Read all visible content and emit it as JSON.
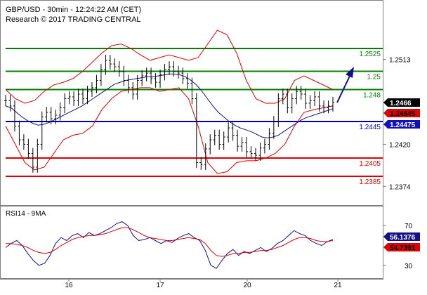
{
  "header": {
    "title": "GBP/USD - 30min - 12:24:22 AM (CET)",
    "subtitle": "Research © 2017 TRADING CENTRAL"
  },
  "chart_data": [
    {
      "type": "candlestick",
      "symbol": "GBP/USD",
      "ylim": [
        1.2355,
        1.2555
      ],
      "y_ticks": [
        "1.2513",
        "1.2466",
        "1.2420",
        "1.2374"
      ],
      "x_tick_labels": [
        "16",
        "17",
        "20",
        "21"
      ],
      "levels": [
        {
          "label": "1.2525",
          "value": 1.2525,
          "color": "#008000"
        },
        {
          "label": "1.25",
          "value": 1.25,
          "color": "#008000"
        },
        {
          "label": "1.248",
          "value": 1.248,
          "color": "#008000"
        },
        {
          "label": "1.2445",
          "value": 1.2445,
          "color": "#0000c0"
        },
        {
          "label": "1.2405",
          "value": 1.2405,
          "color": "#e00000"
        },
        {
          "label": "1.2385",
          "value": 1.2385,
          "color": "#e00000"
        }
      ],
      "price_tags": [
        {
          "label": "1.2466",
          "value": 1.2466,
          "bg": "#000000",
          "fg": "#ffffff"
        },
        {
          "label": "1.24645",
          "value": 1.24645,
          "bg": "#e00000",
          "fg": "#000000"
        },
        {
          "label": "1.24475",
          "value": 1.24475,
          "bg": "#1010c0",
          "fg": "#ffffff"
        }
      ],
      "close_series": [
        1.2468,
        1.2462,
        1.244,
        1.2425,
        1.242,
        1.241,
        1.2395,
        1.242,
        1.245,
        1.2455,
        1.2448,
        1.2452,
        1.246,
        1.247,
        1.2472,
        1.2468,
        1.2475,
        1.247,
        1.2478,
        1.2482,
        1.249,
        1.2502,
        1.2512,
        1.2508,
        1.2505,
        1.25,
        1.249,
        1.2482,
        1.2475,
        1.249,
        1.2495,
        1.2498,
        1.2492,
        1.2488,
        1.2496,
        1.2502,
        1.2505,
        1.25,
        1.2498,
        1.2492,
        1.2487,
        1.247,
        1.24,
        1.2398,
        1.2415,
        1.2425,
        1.243,
        1.242,
        1.2428,
        1.2438,
        1.243,
        1.2418,
        1.2422,
        1.2412,
        1.241,
        1.2408,
        1.2416,
        1.242,
        1.2432,
        1.2445,
        1.247,
        1.2475,
        1.246,
        1.247,
        1.2478,
        1.2475,
        1.2465,
        1.2468,
        1.2472,
        1.2462,
        1.246,
        1.2462,
        1.2466
      ],
      "ma_series": [
        1.2462,
        1.246,
        1.2455,
        1.245,
        1.2446,
        1.2443,
        1.2441,
        1.2442,
        1.2444,
        1.2447,
        1.245,
        1.2453,
        1.2456,
        1.2459,
        1.2462,
        1.2466,
        1.247,
        1.2474,
        1.2478,
        1.2482,
        1.2486,
        1.2488,
        1.249,
        1.2491,
        1.2492,
        1.2493,
        1.2494,
        1.2494,
        1.2495,
        1.2496,
        1.2497,
        1.2497,
        1.2496,
        1.2494,
        1.249,
        1.2485,
        1.2478,
        1.247,
        1.2462,
        1.2455,
        1.245,
        1.2445,
        1.2441,
        1.2438,
        1.2436,
        1.2434,
        1.2431,
        1.2428,
        1.2427,
        1.2428,
        1.243,
        1.2434,
        1.2438,
        1.2442,
        1.2446,
        1.2449,
        1.2451,
        1.2453,
        1.2455,
        1.2457,
        1.2459
      ],
      "bb_upper": [
        1.248,
        1.247,
        1.2465,
        1.2468,
        1.2478,
        1.2485,
        1.2488,
        1.2492,
        1.25,
        1.251,
        1.252,
        1.2528,
        1.253,
        1.2525,
        1.2518,
        1.2512,
        1.2515,
        1.2518,
        1.2515,
        1.2512,
        1.2515,
        1.253,
        1.2545,
        1.254,
        1.252,
        1.249,
        1.247,
        1.2465,
        1.2465,
        1.247,
        1.249,
        1.2495,
        1.249,
        1.2485,
        1.248
      ],
      "bb_lower": [
        1.244,
        1.242,
        1.24,
        1.2392,
        1.2395,
        1.241,
        1.2425,
        1.243,
        1.2432,
        1.244,
        1.2458,
        1.247,
        1.2478,
        1.248,
        1.2482,
        1.2482,
        1.2478,
        1.248,
        1.2482,
        1.247,
        1.244,
        1.24,
        1.2388,
        1.239,
        1.24,
        1.2402,
        1.2402,
        1.2405,
        1.241,
        1.242,
        1.244,
        1.2455,
        1.2458,
        1.246,
        1.2462
      ]
    },
    {
      "type": "line",
      "title": "RSI14 - 9MA",
      "ylim": [
        20,
        85
      ],
      "y_ticks": [
        "70",
        "30"
      ],
      "value_tags": [
        {
          "label": "56.1376",
          "value": 56.1376,
          "bg": "#10108a",
          "fg": "#ffffff"
        },
        {
          "label": "54.7391",
          "value": 54.7391,
          "bg": "#e00000",
          "fg": "#000000"
        }
      ],
      "series": [
        {
          "values": [
            48,
            52,
            55,
            50,
            42,
            35,
            30,
            32,
            40,
            52,
            58,
            55,
            60,
            62,
            58,
            63,
            60,
            62,
            65,
            68,
            72,
            74,
            70,
            60,
            55,
            56,
            58,
            55,
            52,
            55,
            53,
            57,
            60,
            62,
            58,
            55,
            45,
            30,
            27,
            35,
            42,
            46,
            40,
            44,
            42,
            45,
            48,
            44,
            47,
            52,
            55,
            60,
            65,
            62,
            60,
            55,
            52,
            50,
            54,
            56
          ]
        },
        {
          "values": [
            52,
            52,
            51,
            50,
            48,
            45,
            43,
            42,
            43,
            46,
            50,
            53,
            56,
            58,
            59,
            60,
            60,
            61,
            62,
            64,
            66,
            68,
            68,
            66,
            63,
            60,
            58,
            57,
            56,
            55,
            55,
            56,
            57,
            58,
            57,
            56,
            52,
            45,
            40,
            39,
            40,
            42,
            42,
            43,
            43,
            44,
            45,
            45,
            46,
            48,
            50,
            53,
            56,
            58,
            58,
            57,
            55,
            54,
            54,
            55
          ]
        }
      ]
    }
  ]
}
